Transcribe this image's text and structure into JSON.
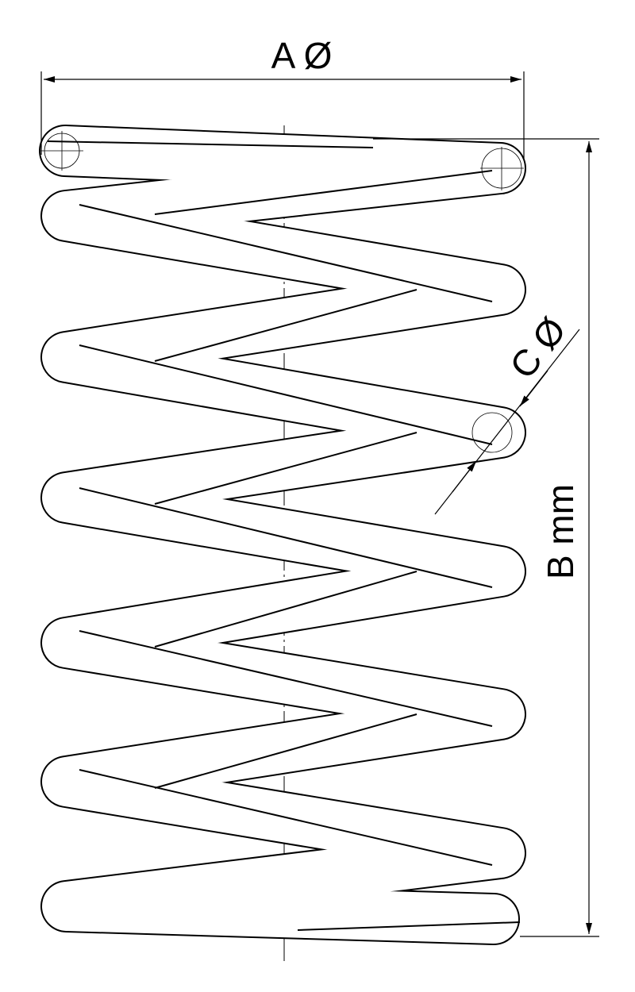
{
  "labels": {
    "a": "A Ø",
    "b": "B mm",
    "c": "C Ø"
  }
}
